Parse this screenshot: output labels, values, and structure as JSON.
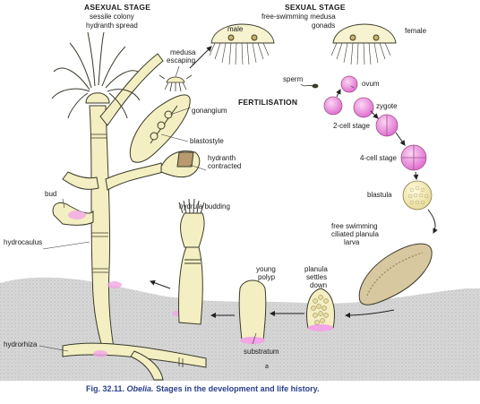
{
  "asexual": {
    "title": "ASEXUAL STAGE",
    "colony": "sessile colony",
    "hydranth_spread": "hydranth spread"
  },
  "sexual": {
    "title": "SEXUAL STAGE",
    "medusa": "free-swimming medusa",
    "gonads": "gonads",
    "male": "male",
    "female": "female"
  },
  "labels": {
    "medusa_escaping_1": "medusa",
    "medusa_escaping_2": "escaping",
    "sperm": "sperm",
    "ovum": "ovum",
    "fertilisation": "FERTILISATION",
    "zygote": "zygote",
    "two_cell": "2-cell stage",
    "four_cell": "4-cell stage",
    "blastula": "blastula",
    "planula_1": "free swimming",
    "planula_2": "ciliated planula",
    "planula_3": "larva",
    "gonangium": "gonangium",
    "blastostyle": "blastostyle",
    "hydranth_contracted_1": "hydranth",
    "hydranth_contracted_2": "contracted",
    "bud": "bud",
    "hydrocaulus": "hydrocaulus",
    "hydrula_budding": "hydrula budding",
    "young_polyp_1": "young",
    "young_polyp_2": "polyp",
    "planula_settles_1": "planula",
    "planula_settles_2": "settles",
    "planula_settles_3": "down",
    "substratum": "substratum",
    "hydrorhiza": "hydrorhiza",
    "a_mark": "a"
  },
  "caption": {
    "fig": "Fig. 32.11.",
    "genus": "Obelia.",
    "text": "Stages in the development and life history."
  },
  "colors": {
    "stalk": "#f3efc2",
    "outline": "#3a3a2a",
    "pink": "#e98ad8",
    "ground": "#dcdcdc",
    "caption": "#2b3f8c"
  }
}
